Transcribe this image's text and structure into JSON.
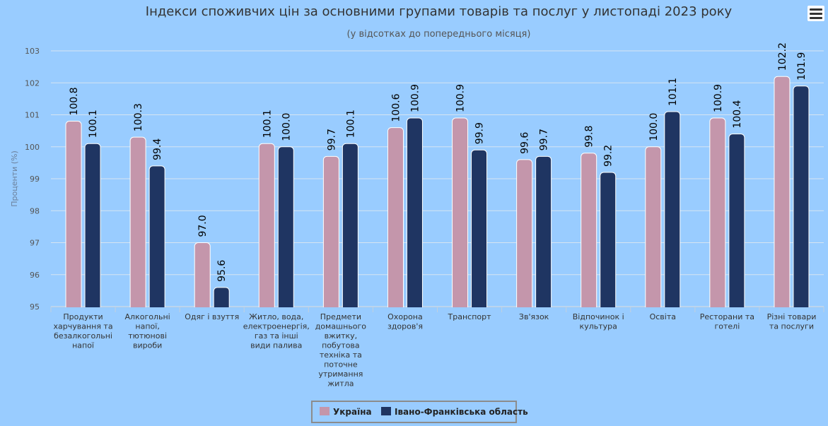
{
  "chart_data": {
    "type": "bar",
    "title": "Індекси споживчих цін за основними групами товарів та послуг у листопаді 2023 року",
    "subtitle": "(у відсотках до попереднього місяця)",
    "ylabel": "Проценти (%)",
    "ylim": [
      95,
      103
    ],
    "yticks": [
      "95",
      "96",
      "97",
      "98",
      "99",
      "100",
      "101",
      "102",
      "103"
    ],
    "grid": true,
    "legend_position": "bottom-center",
    "categories": [
      [
        "Продукти",
        "харчування та",
        "безалкогольні",
        "напої"
      ],
      [
        "Алкогольні",
        "напої,",
        "тютюнові",
        "вироби"
      ],
      [
        "Одяг і взуття"
      ],
      [
        "Житло, вода,",
        "електроенергія,",
        "газ та інші",
        "види палива"
      ],
      [
        "Предмети",
        "домашнього",
        "вжитку,",
        "побутова",
        "техніка та",
        "поточне",
        "утримання",
        "житла"
      ],
      [
        "Охорона",
        "здоров'я"
      ],
      [
        "Транспорт"
      ],
      [
        "Зв'язок"
      ],
      [
        "Відпочинок і",
        "культура"
      ],
      [
        "Освіта"
      ],
      [
        "Ресторани та",
        "готелі"
      ],
      [
        "Різні товари",
        "та послуги"
      ]
    ],
    "series": [
      {
        "name": "Україна",
        "color": "#c496ab",
        "values": [
          100.8,
          100.3,
          97.0,
          100.1,
          99.7,
          100.6,
          100.9,
          99.6,
          99.8,
          100.0,
          100.9,
          102.2
        ],
        "labels": [
          "100.8",
          "100.3",
          "97.0",
          "100.1",
          "99.7",
          "100.6",
          "100.9",
          "99.6",
          "99.8",
          "100.0",
          "100.9",
          "102.2"
        ]
      },
      {
        "name": "Івано-Франківська область",
        "color": "#1f3562",
        "values": [
          100.1,
          99.4,
          95.6,
          100.0,
          100.1,
          100.9,
          99.9,
          99.7,
          99.2,
          101.1,
          100.4,
          101.9
        ],
        "labels": [
          "100.1",
          "99.4",
          "95.6",
          "100.0",
          "100.1",
          "100.9",
          "99.9",
          "99.7",
          "99.2",
          "101.1",
          "100.4",
          "101.9"
        ]
      }
    ]
  },
  "ui": {
    "menu_icon": "hamburger-menu-icon"
  }
}
